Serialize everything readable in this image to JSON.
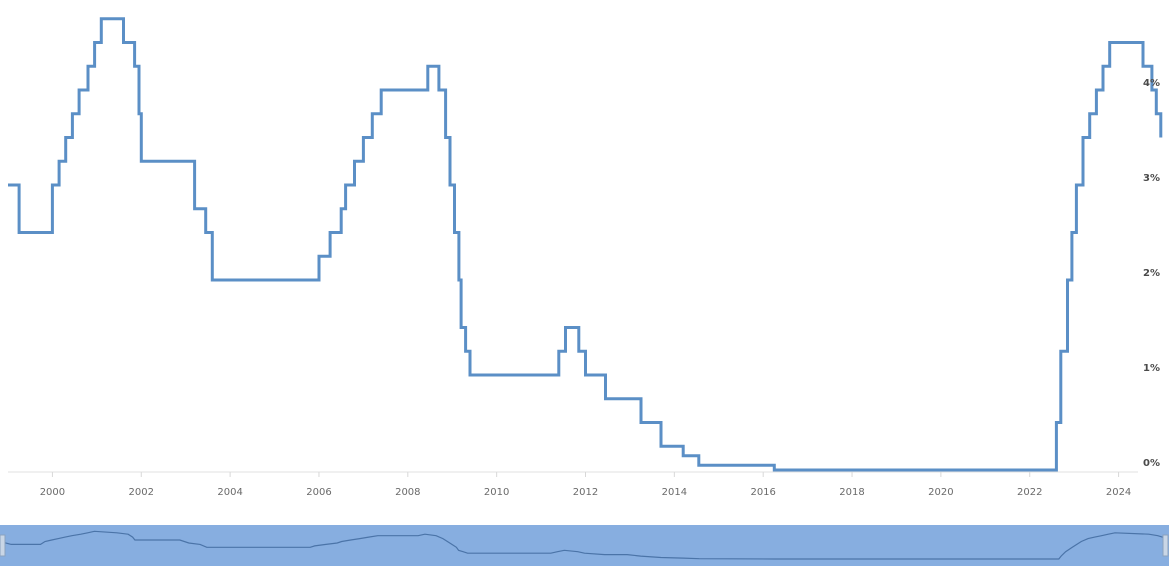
{
  "chart_data": {
    "type": "line",
    "series": [
      {
        "color": "#5b8fc6",
        "step": true,
        "points": [
          [
            1999.0,
            3.0
          ],
          [
            1999.25,
            2.5
          ],
          [
            1999.9,
            2.5
          ],
          [
            2000.0,
            3.0
          ],
          [
            2000.15,
            3.25
          ],
          [
            2000.3,
            3.5
          ],
          [
            2000.45,
            3.75
          ],
          [
            2000.6,
            4.0
          ],
          [
            2000.8,
            4.25
          ],
          [
            2000.95,
            4.5
          ],
          [
            2001.1,
            4.75
          ],
          [
            2001.6,
            4.5
          ],
          [
            2001.85,
            4.25
          ],
          [
            2001.95,
            3.75
          ],
          [
            2002.0,
            3.25
          ],
          [
            2003.0,
            3.25
          ],
          [
            2003.2,
            2.75
          ],
          [
            2003.45,
            2.5
          ],
          [
            2003.6,
            2.0
          ],
          [
            2005.9,
            2.0
          ],
          [
            2006.0,
            2.25
          ],
          [
            2006.25,
            2.5
          ],
          [
            2006.5,
            2.75
          ],
          [
            2006.6,
            3.0
          ],
          [
            2006.8,
            3.25
          ],
          [
            2007.0,
            3.5
          ],
          [
            2007.2,
            3.75
          ],
          [
            2007.4,
            4.0
          ],
          [
            2008.3,
            4.0
          ],
          [
            2008.45,
            4.25
          ],
          [
            2008.7,
            4.0
          ],
          [
            2008.85,
            3.5
          ],
          [
            2008.95,
            3.0
          ],
          [
            2009.05,
            2.5
          ],
          [
            2009.15,
            2.0
          ],
          [
            2009.2,
            1.5
          ],
          [
            2009.3,
            1.25
          ],
          [
            2009.4,
            1.0
          ],
          [
            2011.25,
            1.0
          ],
          [
            2011.4,
            1.25
          ],
          [
            2011.55,
            1.5
          ],
          [
            2011.85,
            1.25
          ],
          [
            2012.0,
            1.0
          ],
          [
            2012.45,
            0.75
          ],
          [
            2012.95,
            0.75
          ],
          [
            2013.25,
            0.5
          ],
          [
            2013.7,
            0.25
          ],
          [
            2014.2,
            0.15
          ],
          [
            2014.55,
            0.05
          ],
          [
            2016.25,
            0.0
          ],
          [
            2022.55,
            0.0
          ],
          [
            2022.6,
            0.5
          ],
          [
            2022.7,
            1.25
          ],
          [
            2022.85,
            2.0
          ],
          [
            2022.95,
            2.5
          ],
          [
            2023.05,
            3.0
          ],
          [
            2023.2,
            3.5
          ],
          [
            2023.35,
            3.75
          ],
          [
            2023.5,
            4.0
          ],
          [
            2023.65,
            4.25
          ],
          [
            2023.8,
            4.5
          ],
          [
            2024.55,
            4.25
          ],
          [
            2024.75,
            4.0
          ],
          [
            2024.85,
            3.75
          ],
          [
            2024.95,
            3.5
          ]
        ]
      }
    ],
    "xlim": [
      1999.0,
      2025.0
    ],
    "ylim": [
      0,
      4.8
    ],
    "x_ticks": [
      {
        "value": 2000,
        "label": "2000"
      },
      {
        "value": 2002,
        "label": "2002"
      },
      {
        "value": 2004,
        "label": "2004"
      },
      {
        "value": 2006,
        "label": "2006"
      },
      {
        "value": 2008,
        "label": "2008"
      },
      {
        "value": 2010,
        "label": "2010"
      },
      {
        "value": 2012,
        "label": "2012"
      },
      {
        "value": 2014,
        "label": "2014"
      },
      {
        "value": 2016,
        "label": "2016"
      },
      {
        "value": 2018,
        "label": "2018"
      },
      {
        "value": 2020,
        "label": "2020"
      },
      {
        "value": 2022,
        "label": "2022"
      },
      {
        "value": 2024,
        "label": "2024"
      }
    ],
    "y_ticks": [
      {
        "value": 0,
        "label": "0%"
      },
      {
        "value": 1,
        "label": "1%"
      },
      {
        "value": 2,
        "label": "2%"
      },
      {
        "value": 3,
        "label": "3%"
      },
      {
        "value": 4,
        "label": "4%"
      }
    ],
    "grid": false,
    "y_axis_side": "right",
    "navigator": {
      "background_color": "#87aee0",
      "line_color": "#4b74a8",
      "visible": true
    }
  }
}
